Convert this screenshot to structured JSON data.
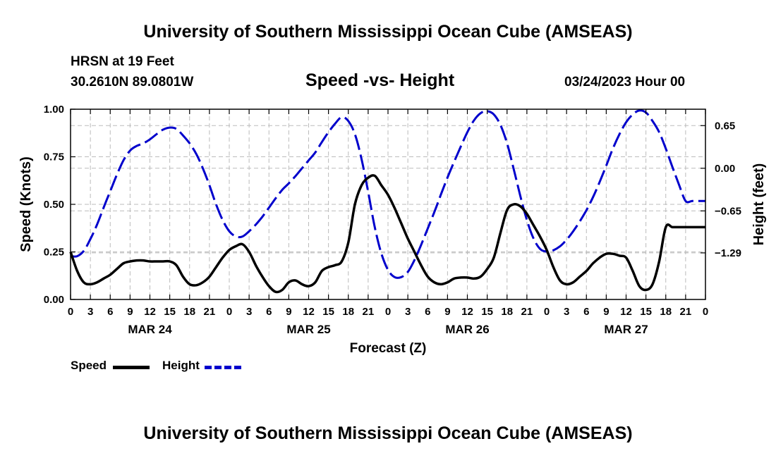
{
  "header": {
    "title": "University of Southern Mississippi Ocean Cube (AMSEAS)",
    "station": "HRSN at 19 Feet",
    "coords": "30.2610N  89.0801W",
    "subtitle": "Speed -vs- Height",
    "datestamp": "03/24/2023 Hour 00"
  },
  "footer": {
    "title": "University of Southern Mississippi Ocean Cube (AMSEAS)"
  },
  "colors": {
    "speed": "#000000",
    "height": "#0000cc",
    "grid": "#bbbbbb"
  },
  "chart_data": {
    "type": "line",
    "title": "Speed -vs- Height",
    "xlabel": "Forecast (Z)",
    "ylabel": "Speed (Knots)",
    "y2label": "Height (feet)",
    "xlim": [
      0,
      96
    ],
    "ylim": [
      0,
      1.0
    ],
    "y2lim": [
      -2.0,
      0.9
    ],
    "x_ticks": [
      0,
      3,
      6,
      9,
      12,
      15,
      18,
      21,
      24,
      27,
      30,
      33,
      36,
      39,
      42,
      45,
      48,
      51,
      54,
      57,
      60,
      63,
      66,
      69,
      72,
      75,
      78,
      81,
      84,
      87,
      90,
      93,
      96
    ],
    "x_tick_labels": [
      "0",
      "3",
      "6",
      "9",
      "12",
      "15",
      "18",
      "21",
      "0",
      "3",
      "6",
      "9",
      "12",
      "15",
      "18",
      "21",
      "0",
      "3",
      "6",
      "9",
      "12",
      "15",
      "18",
      "21",
      "0",
      "3",
      "6",
      "9",
      "12",
      "15",
      "18",
      "21",
      "0"
    ],
    "y_ticks": [
      0,
      0.25,
      0.5,
      0.75,
      1.0
    ],
    "y_tick_labels": [
      "0.00",
      "0.25",
      "0.50",
      "0.75",
      "1.00"
    ],
    "y2_ticks": [
      0.65,
      0.0,
      -0.65,
      -1.29
    ],
    "y2_tick_labels": [
      "0.65",
      "0.00",
      "−0.65",
      "−1.29"
    ],
    "day_labels": [
      {
        "x": 12,
        "label": "MAR 24"
      },
      {
        "x": 36,
        "label": "MAR 25"
      },
      {
        "x": 60,
        "label": "MAR 26"
      },
      {
        "x": 84,
        "label": "MAR 27"
      }
    ],
    "grid": true,
    "series": [
      {
        "name": "Speed",
        "axis": "left",
        "style": "solid",
        "x": [
          0,
          1,
          2,
          3,
          4,
          5,
          6,
          7,
          8,
          9,
          10,
          11,
          12,
          13,
          14,
          15,
          16,
          17,
          18,
          19,
          20,
          21,
          22,
          23,
          24,
          25,
          26,
          27,
          28,
          29,
          30,
          31,
          32,
          33,
          34,
          35,
          36,
          37,
          38,
          39,
          40,
          41,
          42,
          43,
          44,
          45,
          46,
          47,
          48,
          49,
          50,
          51,
          52,
          53,
          54,
          55,
          56,
          57,
          58,
          59,
          60,
          61,
          62,
          63,
          64,
          65,
          66,
          67,
          68,
          69,
          70,
          71,
          72,
          73,
          74,
          75,
          76,
          77,
          78,
          79,
          80,
          81,
          82,
          83,
          84,
          85,
          86,
          87,
          88,
          89,
          90,
          91,
          92,
          93,
          94,
          95,
          96
        ],
        "values": [
          0.25,
          0.15,
          0.09,
          0.08,
          0.09,
          0.11,
          0.13,
          0.16,
          0.19,
          0.2,
          0.205,
          0.205,
          0.2,
          0.2,
          0.2,
          0.2,
          0.18,
          0.12,
          0.08,
          0.075,
          0.09,
          0.12,
          0.17,
          0.22,
          0.26,
          0.28,
          0.29,
          0.25,
          0.18,
          0.12,
          0.07,
          0.04,
          0.05,
          0.09,
          0.1,
          0.08,
          0.07,
          0.09,
          0.15,
          0.17,
          0.18,
          0.2,
          0.3,
          0.5,
          0.6,
          0.64,
          0.65,
          0.6,
          0.55,
          0.48,
          0.4,
          0.32,
          0.25,
          0.18,
          0.12,
          0.09,
          0.08,
          0.09,
          0.11,
          0.115,
          0.115,
          0.11,
          0.12,
          0.16,
          0.22,
          0.35,
          0.47,
          0.5,
          0.49,
          0.45,
          0.39,
          0.33,
          0.26,
          0.17,
          0.1,
          0.08,
          0.09,
          0.12,
          0.15,
          0.19,
          0.22,
          0.24,
          0.24,
          0.23,
          0.22,
          0.15,
          0.07,
          0.05,
          0.08,
          0.2,
          0.38,
          0.38,
          0.38,
          0.38,
          0.38,
          0.38,
          0.38
        ]
      },
      {
        "name": "Height",
        "axis": "right",
        "style": "dashed",
        "x": [
          0,
          1,
          2,
          3,
          4,
          5,
          6,
          7,
          8,
          9,
          10,
          11,
          12,
          13,
          14,
          15,
          16,
          17,
          18,
          19,
          20,
          21,
          22,
          23,
          24,
          25,
          26,
          27,
          28,
          29,
          30,
          31,
          32,
          33,
          34,
          35,
          36,
          37,
          38,
          39,
          40,
          41,
          42,
          43,
          44,
          45,
          46,
          47,
          48,
          49,
          50,
          51,
          52,
          53,
          54,
          55,
          56,
          57,
          58,
          59,
          60,
          61,
          62,
          63,
          64,
          65,
          66,
          67,
          68,
          69,
          70,
          71,
          72,
          73,
          74,
          75,
          76,
          77,
          78,
          79,
          80,
          81,
          82,
          83,
          84,
          85,
          86,
          87,
          88,
          89,
          90,
          91,
          92,
          93,
          94,
          95,
          96
        ],
        "values": [
          -1.34,
          -1.34,
          -1.26,
          -1.08,
          -0.86,
          -0.6,
          -0.35,
          -0.1,
          0.12,
          0.27,
          0.34,
          0.38,
          0.44,
          0.52,
          0.59,
          0.62,
          0.6,
          0.5,
          0.38,
          0.22,
          0.0,
          -0.26,
          -0.55,
          -0.79,
          -0.96,
          -1.04,
          -1.04,
          -0.96,
          -0.86,
          -0.74,
          -0.6,
          -0.46,
          -0.33,
          -0.23,
          -0.12,
          0.0,
          0.12,
          0.24,
          0.4,
          0.55,
          0.68,
          0.78,
          0.72,
          0.52,
          0.14,
          -0.36,
          -0.9,
          -1.3,
          -1.55,
          -1.66,
          -1.66,
          -1.58,
          -1.4,
          -1.17,
          -0.92,
          -0.67,
          -0.4,
          -0.14,
          0.1,
          0.33,
          0.55,
          0.73,
          0.84,
          0.87,
          0.82,
          0.66,
          0.38,
          -0.01,
          -0.42,
          -0.79,
          -1.07,
          -1.23,
          -1.27,
          -1.25,
          -1.19,
          -1.09,
          -0.96,
          -0.81,
          -0.64,
          -0.44,
          -0.21,
          0.04,
          0.3,
          0.52,
          0.7,
          0.82,
          0.88,
          0.85,
          0.72,
          0.55,
          0.3,
          0.02,
          -0.25,
          -0.5,
          -0.5,
          -0.5,
          -0.5
        ]
      }
    ],
    "legend": [
      {
        "label": "Speed",
        "series": 0
      },
      {
        "label": "Height",
        "series": 1
      }
    ]
  }
}
